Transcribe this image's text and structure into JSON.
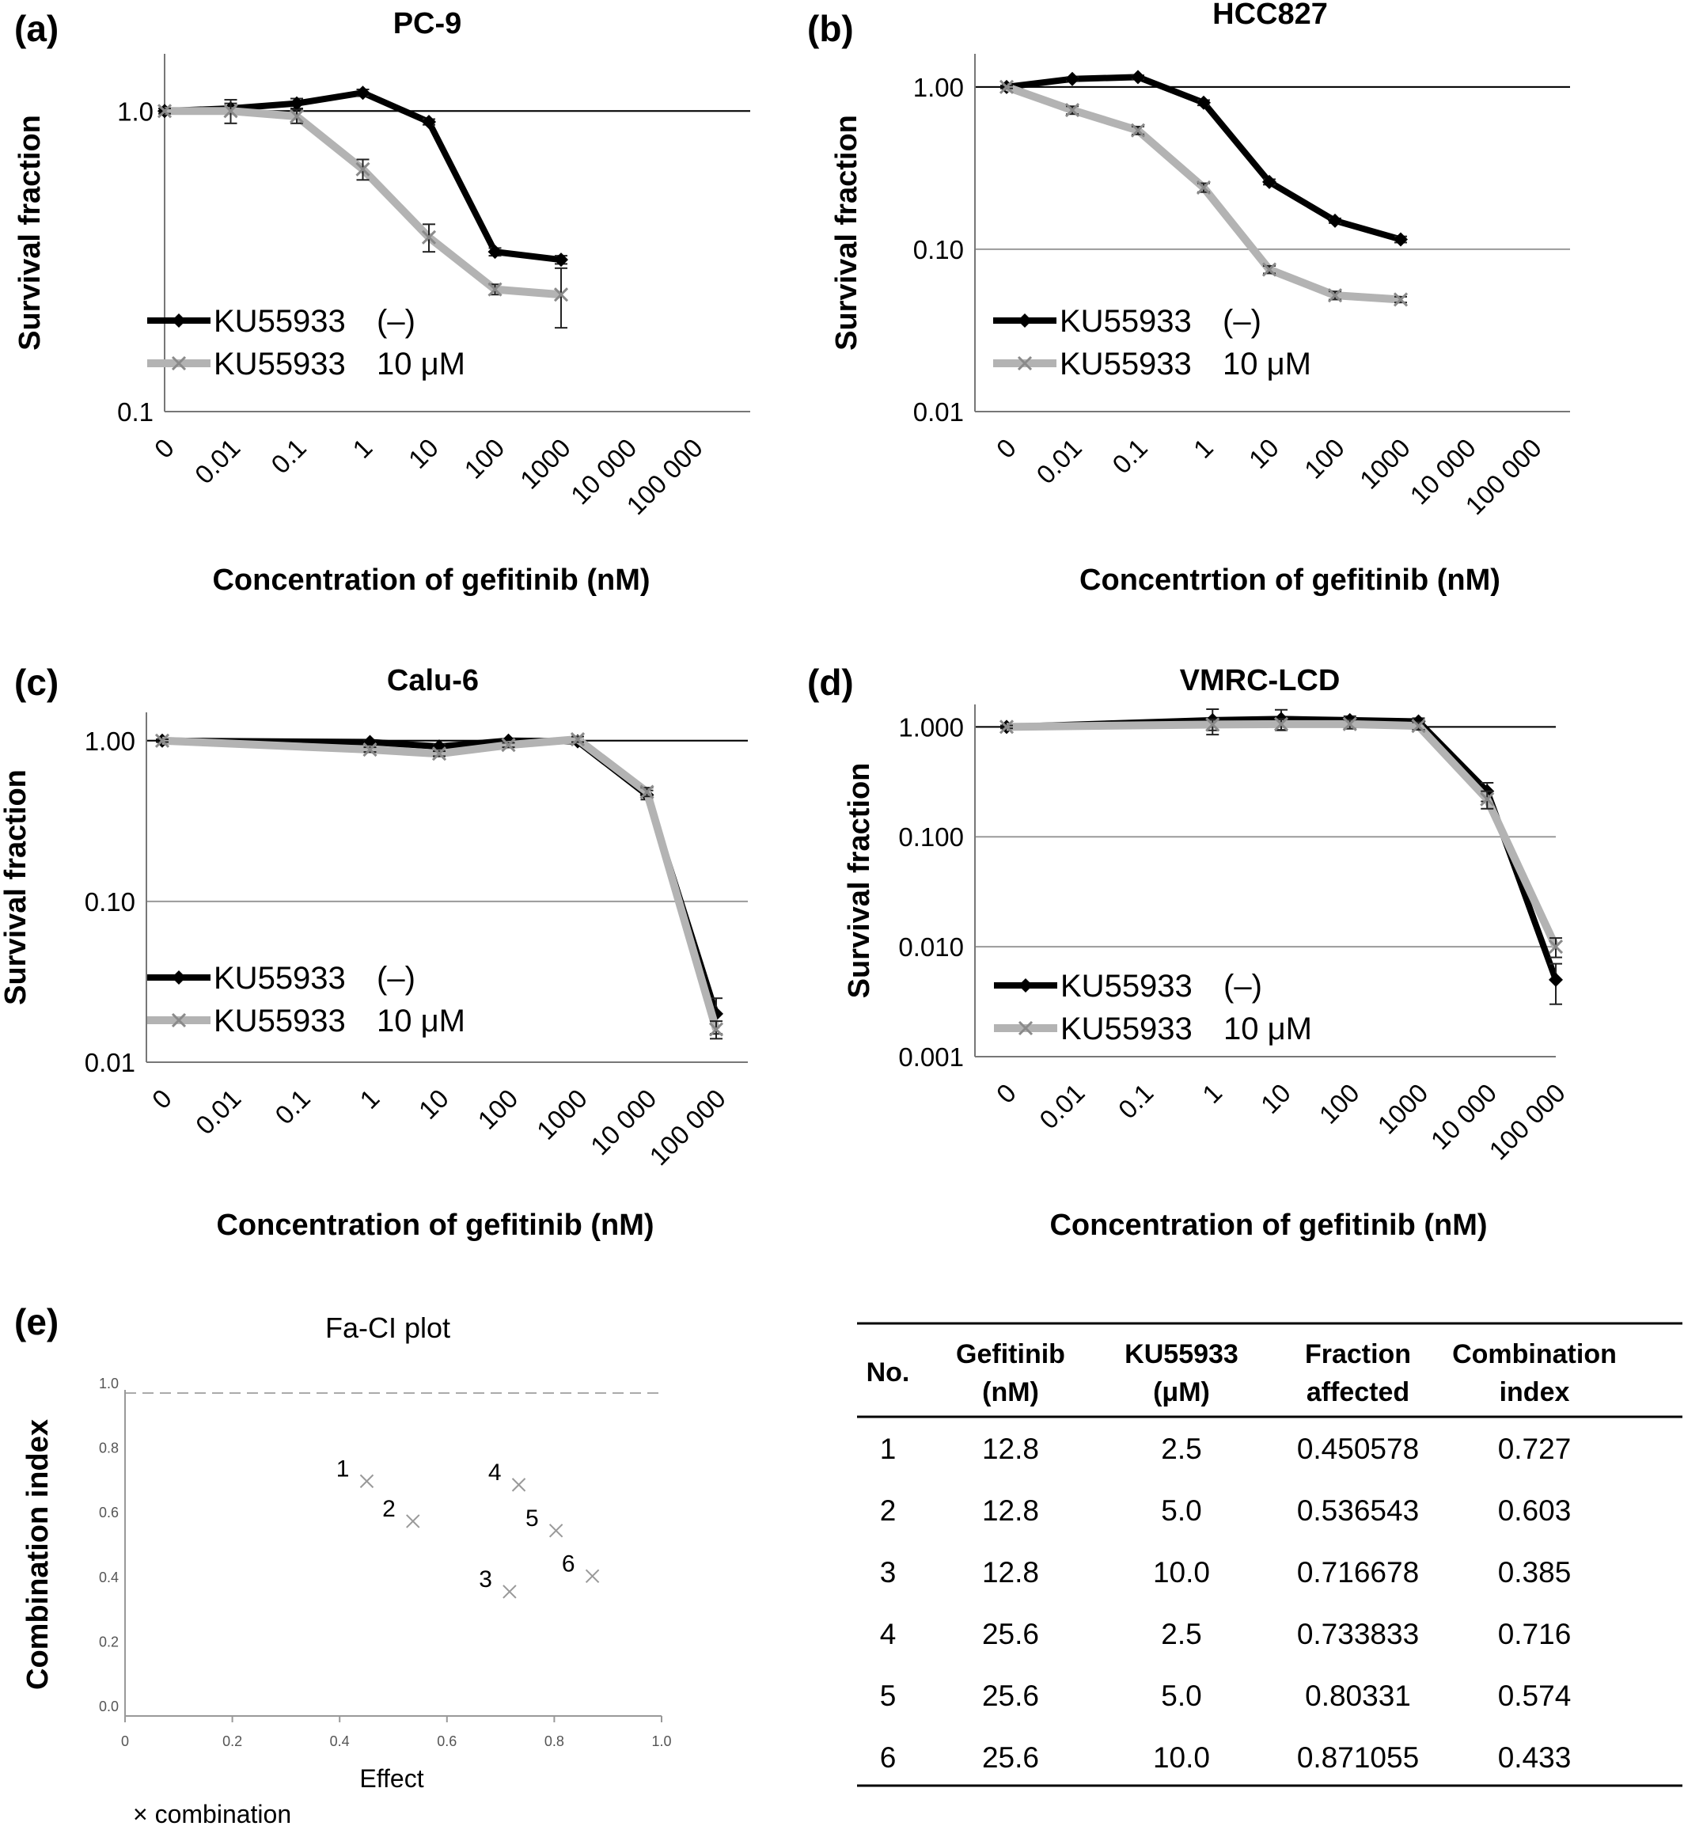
{
  "charts": [
    {
      "letter": "(a)",
      "title": "PC-9",
      "xlabel": "Concentration of gefitinib (nM)",
      "ylabel": "Survival fraction",
      "categories": [
        "0",
        "0.01",
        "0.1",
        "1",
        "10",
        "100",
        "1000",
        "10 000",
        "100 000"
      ],
      "yticks": [
        {
          "v": 0.1,
          "t": "0.1"
        },
        {
          "v": 1,
          "t": "1.0"
        }
      ],
      "ylim": [
        0.1,
        1.55
      ],
      "refline": 1.0,
      "legend": [
        {
          "name": "KU55933",
          "suffix": "(–)"
        },
        {
          "name": "KU55933",
          "suffix": "10 μM"
        }
      ],
      "series": [
        {
          "name": "KU55933 (–)",
          "color": "#000000",
          "values": [
            1.0,
            1.02,
            1.06,
            1.15,
            0.92,
            0.34,
            0.32,
            null,
            null
          ],
          "errors": [
            0.02,
            0.04,
            0.04,
            0.03,
            0.02,
            0.01,
            0.01,
            null,
            null
          ]
        },
        {
          "name": "KU55933 10 μM",
          "color": "#b3b3b3",
          "values": [
            1.0,
            1.0,
            0.96,
            0.64,
            0.38,
            0.255,
            0.245,
            null,
            null
          ],
          "errors": [
            0.02,
            0.09,
            0.05,
            0.05,
            0.04,
            0.01,
            0.055,
            null,
            null
          ]
        }
      ]
    },
    {
      "letter": "(b)",
      "title": "HCC827",
      "xlabel": "Concentrtion of gefitinib (nM)",
      "ylabel": "Survival fraction",
      "categories": [
        "0",
        "0.01",
        "0.1",
        "1",
        "10",
        "100",
        "1000",
        "10 000",
        "100 000"
      ],
      "yticks": [
        {
          "v": 0.01,
          "t": "0.01"
        },
        {
          "v": 0.1,
          "t": "0.10"
        },
        {
          "v": 1,
          "t": "1.00"
        }
      ],
      "ylim": [
        0.01,
        1.6
      ],
      "refline": 1.0,
      "legend": [
        {
          "name": "KU55933",
          "suffix": "(–)"
        },
        {
          "name": "KU55933",
          "suffix": "10 μM"
        }
      ],
      "series": [
        {
          "name": "KU55933 (–)",
          "color": "#000000",
          "values": [
            1.0,
            1.12,
            1.15,
            0.8,
            0.26,
            0.15,
            0.115,
            null,
            null
          ],
          "errors": [
            0.02,
            0.03,
            0.03,
            0.03,
            0.01,
            0.005,
            0.005,
            null,
            null
          ]
        },
        {
          "name": "KU55933 10 μM",
          "color": "#b3b3b3",
          "values": [
            1.0,
            0.72,
            0.54,
            0.24,
            0.075,
            0.052,
            0.049,
            null,
            null
          ],
          "errors": [
            0.02,
            0.04,
            0.03,
            0.015,
            0.004,
            0.003,
            0.002,
            null,
            null
          ]
        }
      ]
    },
    {
      "letter": "(c)",
      "title": "Calu-6",
      "xlabel": "Concentration of gefitinib (nM)",
      "ylabel": "Survival fraction",
      "categories": [
        "0",
        "0.01",
        "0.1",
        "1",
        "10",
        "100",
        "1000",
        "10 000",
        "100 000"
      ],
      "yticks": [
        {
          "v": 0.01,
          "t": "0.01"
        },
        {
          "v": 0.1,
          "t": "0.10"
        },
        {
          "v": 1,
          "t": "1.00"
        }
      ],
      "ylim": [
        0.01,
        1.5
      ],
      "refline": 1.0,
      "legend": [
        {
          "name": "KU55933",
          "suffix": "(–)"
        },
        {
          "name": "KU55933",
          "suffix": "10 μM"
        }
      ],
      "series": [
        {
          "name": "KU55933 (–)",
          "color": "#000000",
          "values": [
            1.0,
            null,
            null,
            0.98,
            0.92,
            1.0,
            0.99,
            0.46,
            0.02
          ],
          "errors": [
            0.02,
            null,
            null,
            0.02,
            0.03,
            0.02,
            0.03,
            0.03,
            0.005
          ]
        },
        {
          "name": "KU55933 10 μM",
          "color": "#b3b3b3",
          "values": [
            1.0,
            null,
            null,
            0.88,
            0.83,
            0.94,
            1.02,
            0.48,
            0.016
          ],
          "errors": [
            0.02,
            null,
            null,
            0.03,
            0.03,
            0.03,
            0.04,
            0.03,
            0.002
          ]
        }
      ]
    },
    {
      "letter": "(d)",
      "title": "VMRC-LCD",
      "xlabel": "Concentration of gefitinib (nM)",
      "ylabel": "Survival fraction",
      "categories": [
        "0",
        "0.01",
        "0.1",
        "1",
        "10",
        "100",
        "1000",
        "10 000",
        "100 000"
      ],
      "yticks": [
        {
          "v": 0.001,
          "t": "0.001"
        },
        {
          "v": 0.01,
          "t": "0.010"
        },
        {
          "v": 0.1,
          "t": "0.100"
        },
        {
          "v": 1,
          "t": "1.000"
        }
      ],
      "ylim": [
        0.001,
        1.6
      ],
      "refline": 1.0,
      "legend": [
        {
          "name": "KU55933",
          "suffix": "(–)"
        },
        {
          "name": "KU55933",
          "suffix": "10 μM"
        }
      ],
      "series": [
        {
          "name": "KU55933 (–)",
          "color": "#000000",
          "values": [
            1.0,
            null,
            null,
            1.15,
            1.18,
            1.15,
            1.12,
            0.26,
            0.005
          ],
          "errors": [
            0.03,
            null,
            null,
            0.3,
            0.25,
            0.1,
            0.08,
            0.05,
            0.002
          ]
        },
        {
          "name": "KU55933 10 μM",
          "color": "#b3b3b3",
          "values": [
            1.0,
            null,
            null,
            1.05,
            1.06,
            1.06,
            1.02,
            0.22,
            0.01
          ],
          "errors": [
            0.03,
            null,
            null,
            0.12,
            0.12,
            0.1,
            0.08,
            0.04,
            0.002
          ]
        }
      ]
    }
  ],
  "chart_data": {
    "type": "scatter",
    "letter": "(e)",
    "title": "Fa-CI plot",
    "xlabel": "Effect",
    "ylabel": "Combination  index",
    "xlim": [
      0,
      1.0
    ],
    "ylim": [
      0,
      1.0
    ],
    "xticks": [
      "0",
      "0.2",
      "0.4",
      "0.6",
      "0.8",
      "1.0"
    ],
    "yticks": [
      "0.0",
      "0.2",
      "0.4",
      "0.6",
      "0.8",
      "1.0"
    ],
    "refline": 1.0,
    "legend": "× combination",
    "points": [
      {
        "label": "1",
        "x": 0.450578,
        "y": 0.727
      },
      {
        "label": "2",
        "x": 0.536543,
        "y": 0.603
      },
      {
        "label": "3",
        "x": 0.716678,
        "y": 0.385
      },
      {
        "label": "4",
        "x": 0.733833,
        "y": 0.716
      },
      {
        "label": "5",
        "x": 0.80331,
        "y": 0.574
      },
      {
        "label": "6",
        "x": 0.871055,
        "y": 0.433
      }
    ]
  },
  "table": {
    "headers": [
      [
        "No."
      ],
      [
        "Gefitinib",
        "(nM)"
      ],
      [
        "KU55933",
        "(μM)"
      ],
      [
        "Fraction",
        "affected"
      ],
      [
        "Combination",
        "index"
      ]
    ],
    "rows": [
      [
        "1",
        "12.8",
        "2.5",
        "0.450578",
        "0.727"
      ],
      [
        "2",
        "12.8",
        "5.0",
        "0.536543",
        "0.603"
      ],
      [
        "3",
        "12.8",
        "10.0",
        "0.716678",
        "0.385"
      ],
      [
        "4",
        "25.6",
        "2.5",
        "0.733833",
        "0.716"
      ],
      [
        "5",
        "25.6",
        "5.0",
        "0.80331",
        "0.574"
      ],
      [
        "6",
        "25.6",
        "10.0",
        "0.871055",
        "0.433"
      ]
    ]
  }
}
